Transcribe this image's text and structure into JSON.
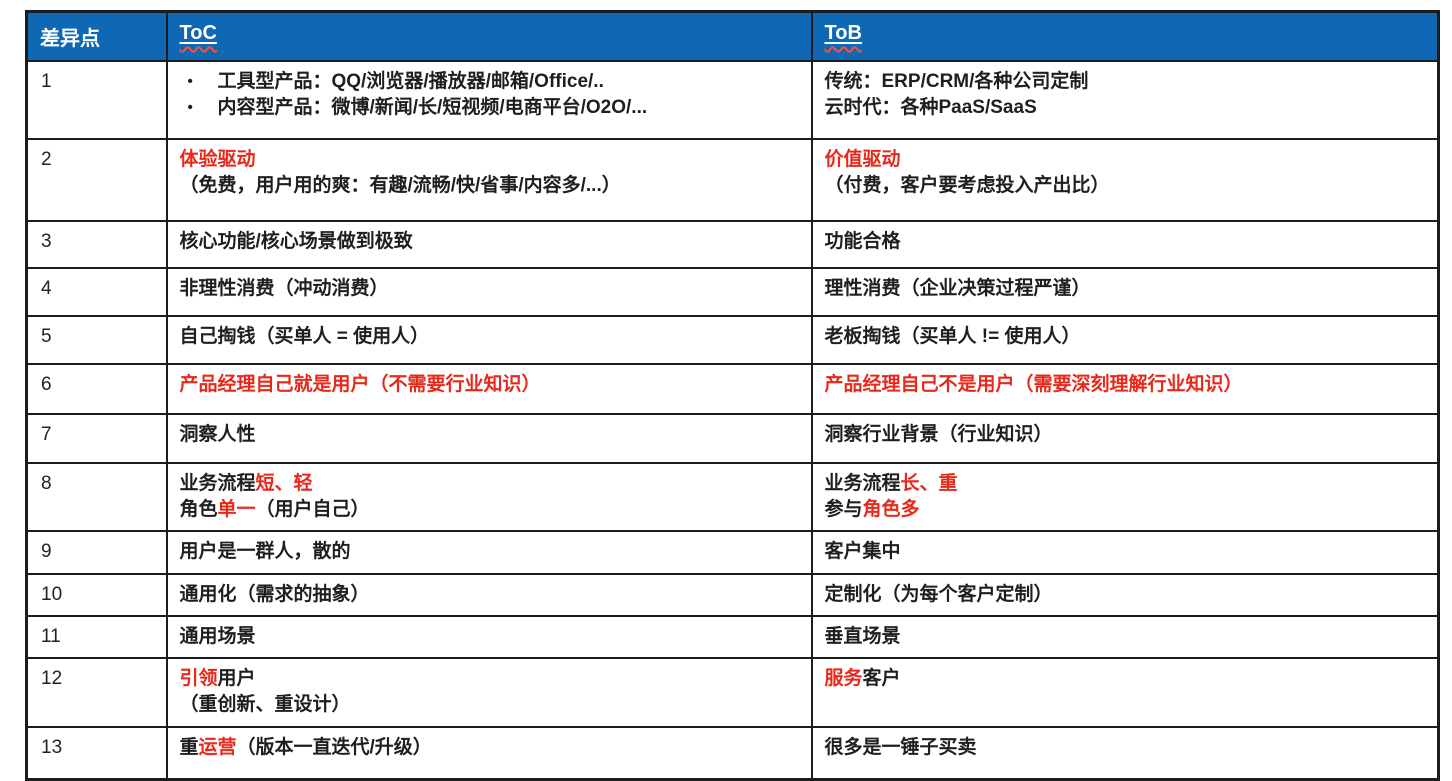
{
  "table": {
    "header": {
      "diff": "差异点",
      "toc": "ToC",
      "tob": "ToB"
    },
    "colors": {
      "header_bg": "#0e68b4",
      "header_text": "#ffffff",
      "highlight_red": "#e8281a",
      "body_text": "#1f1f1f",
      "border": "#1c1c1c"
    },
    "rows": [
      {
        "num": "1",
        "toc": {
          "bullets": true,
          "lines": [
            [
              {
                "t": "工具型产品：QQ/浏览器/播放器/邮箱/Office/..",
                "c": "k"
              }
            ],
            [
              {
                "t": "内容型产品：微博/新闻/长/短视频/电商平台/O2O/...",
                "c": "k"
              }
            ]
          ]
        },
        "tob": {
          "lines": [
            [
              {
                "t": "传统：ERP/CRM/各种公司定制",
                "c": "k"
              }
            ],
            [
              {
                "t": "云时代：各种PaaS/SaaS",
                "c": "k"
              }
            ]
          ]
        }
      },
      {
        "num": "2",
        "toc": {
          "lines": [
            [
              {
                "t": "体验驱动",
                "c": "r"
              }
            ],
            [
              {
                "t": "（免费，用户用的爽：有趣/流畅/快/省事/内容多/...）",
                "c": "k"
              }
            ]
          ]
        },
        "tob": {
          "lines": [
            [
              {
                "t": "价值驱动",
                "c": "r"
              }
            ],
            [
              {
                "t": "（付费，客户要考虑投入产出比）",
                "c": "k"
              }
            ]
          ]
        }
      },
      {
        "num": "3",
        "toc": {
          "lines": [
            [
              {
                "t": "核心功能/核心场景做到极致",
                "c": "k"
              }
            ]
          ]
        },
        "tob": {
          "lines": [
            [
              {
                "t": "功能合格",
                "c": "k"
              }
            ]
          ]
        }
      },
      {
        "num": "4",
        "toc": {
          "lines": [
            [
              {
                "t": "非理性消费（冲动消费）",
                "c": "k"
              }
            ]
          ]
        },
        "tob": {
          "lines": [
            [
              {
                "t": "理性消费（企业决策过程严谨）",
                "c": "k"
              }
            ]
          ]
        }
      },
      {
        "num": "5",
        "toc": {
          "lines": [
            [
              {
                "t": "自己掏钱（买单人 = 使用人）",
                "c": "k"
              }
            ]
          ]
        },
        "tob": {
          "lines": [
            [
              {
                "t": "老板掏钱（买单人 != 使用人）",
                "c": "k"
              }
            ]
          ]
        }
      },
      {
        "num": "6",
        "toc": {
          "lines": [
            [
              {
                "t": "产品经理自己就是用户（不需要行业知识）",
                "c": "r"
              }
            ]
          ]
        },
        "tob": {
          "lines": [
            [
              {
                "t": "产品经理自己不是用户（需要深刻理解行业知识）",
                "c": "r"
              }
            ]
          ]
        }
      },
      {
        "num": "7",
        "toc": {
          "lines": [
            [
              {
                "t": "洞察人性",
                "c": "k"
              }
            ]
          ]
        },
        "tob": {
          "lines": [
            [
              {
                "t": "洞察行业背景（行业知识）",
                "c": "k"
              }
            ]
          ]
        }
      },
      {
        "num": "8",
        "toc": {
          "lines": [
            [
              {
                "t": "业务流程",
                "c": "k"
              },
              {
                "t": "短、轻",
                "c": "r"
              }
            ],
            [
              {
                "t": "角色",
                "c": "k"
              },
              {
                "t": "单一",
                "c": "r"
              },
              {
                "t": "（用户自己）",
                "c": "k"
              }
            ]
          ]
        },
        "tob": {
          "lines": [
            [
              {
                "t": "业务流程",
                "c": "k"
              },
              {
                "t": "长、重",
                "c": "r"
              }
            ],
            [
              {
                "t": "参与",
                "c": "k"
              },
              {
                "t": "角色多",
                "c": "r"
              }
            ]
          ]
        }
      },
      {
        "num": "9",
        "toc": {
          "lines": [
            [
              {
                "t": "用户是一群人，散的",
                "c": "k"
              }
            ]
          ]
        },
        "tob": {
          "lines": [
            [
              {
                "t": "客户集中",
                "c": "k"
              }
            ]
          ]
        }
      },
      {
        "num": "10",
        "toc": {
          "lines": [
            [
              {
                "t": "通用化（需求的抽象）",
                "c": "k"
              }
            ]
          ]
        },
        "tob": {
          "lines": [
            [
              {
                "t": "定制化（为每个客户定制）",
                "c": "k"
              }
            ]
          ]
        }
      },
      {
        "num": "11",
        "toc": {
          "lines": [
            [
              {
                "t": "通用场景",
                "c": "k"
              }
            ]
          ]
        },
        "tob": {
          "lines": [
            [
              {
                "t": "垂直场景",
                "c": "k"
              }
            ]
          ]
        }
      },
      {
        "num": "12",
        "toc": {
          "lines": [
            [
              {
                "t": "引领",
                "c": "r"
              },
              {
                "t": "用户",
                "c": "k"
              }
            ],
            [
              {
                "t": "（重创新、重设计）",
                "c": "k"
              }
            ]
          ]
        },
        "tob": {
          "lines": [
            [
              {
                "t": "服务",
                "c": "r"
              },
              {
                "t": "客户",
                "c": "k"
              }
            ]
          ]
        }
      },
      {
        "num": "13",
        "toc": {
          "lines": [
            [
              {
                "t": "重",
                "c": "k"
              },
              {
                "t": "运营",
                "c": "r"
              },
              {
                "t": "（版本一直迭代/升级）",
                "c": "k"
              }
            ]
          ]
        },
        "tob": {
          "lines": [
            [
              {
                "t": "很多是一锤子买卖",
                "c": "k"
              }
            ]
          ]
        }
      }
    ]
  }
}
